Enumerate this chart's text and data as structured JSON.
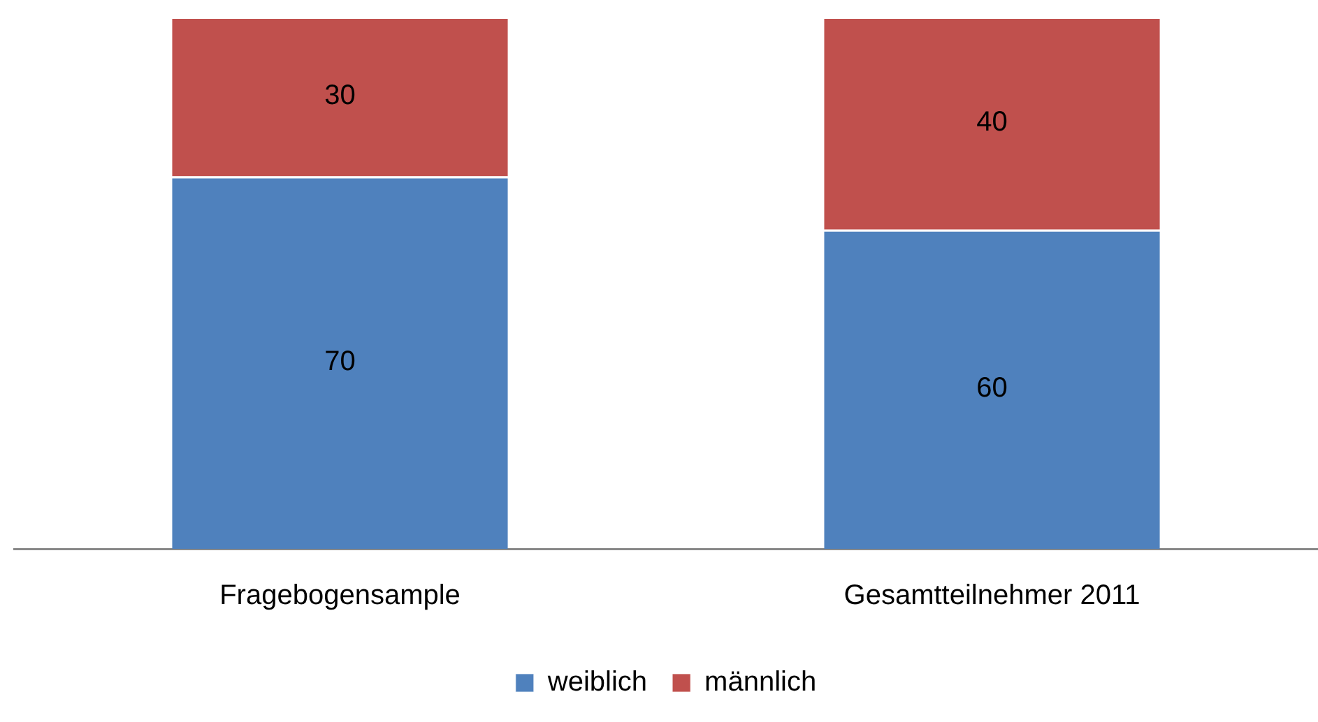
{
  "chart_data": {
    "type": "bar",
    "stacked": true,
    "categories": [
      "Fragebogensample",
      "Gesamtteilnehmer 2011"
    ],
    "series": [
      {
        "name": "weiblich",
        "color": "#4f81bd",
        "values": [
          70,
          60
        ]
      },
      {
        "name": "männlich",
        "color": "#c0504d",
        "values": [
          30,
          40
        ]
      }
    ],
    "data_labels": true,
    "legend": "bottom",
    "grid": false,
    "tick_labels": "x"
  }
}
